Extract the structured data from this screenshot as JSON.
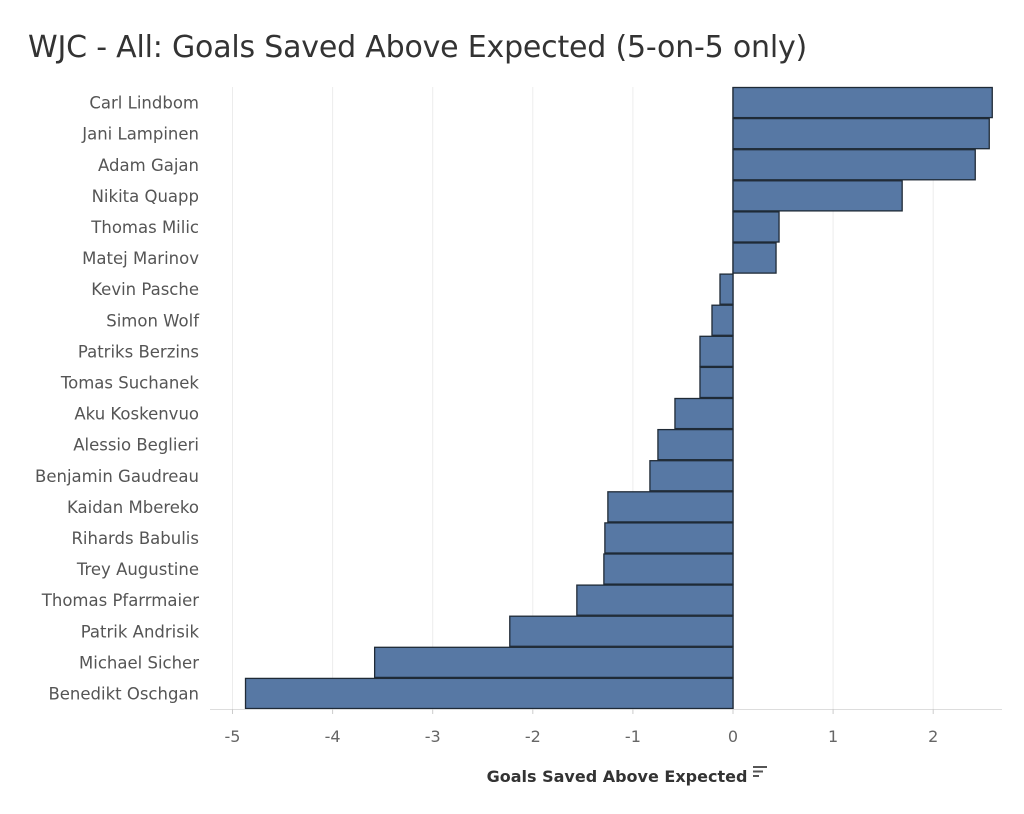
{
  "chart_data": {
    "type": "bar",
    "orientation": "horizontal",
    "title": "WJC - All: Goals Saved Above Expected (5-on-5 only)",
    "xlabel": "Goals Saved Above Expected",
    "ylabel": "",
    "xlim": [
      -5.2,
      2.7
    ],
    "xticks": [
      -5,
      -4,
      -3,
      -2,
      -1,
      0,
      1,
      2
    ],
    "grid": "vertical",
    "bar_color": "#5778a4",
    "bar_edge_color": "#1f2a36",
    "sort_icon": "sort-descending-icon",
    "categories": [
      "Carl Lindbom",
      "Jani Lampinen",
      "Adam Gajan",
      "Nikita Quapp",
      "Thomas Milic",
      "Matej Marinov",
      "Kevin Pasche",
      "Simon Wolf",
      "Patriks Berzins",
      "Tomas Suchanek",
      "Aku Koskenvuo",
      "Alessio Beglieri",
      "Benjamin Gaudreau",
      "Kaidan Mbereko",
      "Rihards Babulis",
      "Trey Augustine",
      "Thomas Pfarrmaier",
      "Patrik Andrisik",
      "Michael Sicher",
      "Benedikt Oschgan"
    ],
    "values": [
      2.59,
      2.56,
      2.42,
      1.69,
      0.46,
      0.43,
      -0.13,
      -0.21,
      -0.33,
      -0.33,
      -0.58,
      -0.75,
      -0.83,
      -1.25,
      -1.28,
      -1.29,
      -1.56,
      -2.23,
      -3.58,
      -4.87
    ]
  }
}
